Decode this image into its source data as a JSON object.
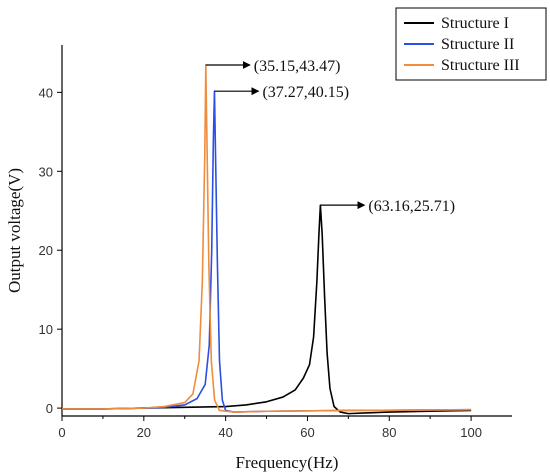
{
  "chart_data": {
    "type": "line",
    "title": "",
    "xlabel": "Frequency(Hz)",
    "ylabel": "Output voltage(V)",
    "xlim": [
      0,
      110
    ],
    "ylim": [
      -1,
      46
    ],
    "xticks": [
      0,
      20,
      40,
      60,
      80,
      100
    ],
    "yticks": [
      0,
      10,
      20,
      30,
      40
    ],
    "grid": false,
    "legend_position": "top-right",
    "series": [
      {
        "name": "Structure I",
        "color": "#000000",
        "points": [
          [
            0,
            -0.1
          ],
          [
            10,
            -0.1
          ],
          [
            20,
            0.0
          ],
          [
            30,
            0.1
          ],
          [
            40,
            0.2
          ],
          [
            45,
            0.4
          ],
          [
            50,
            0.8
          ],
          [
            54,
            1.4
          ],
          [
            57,
            2.3
          ],
          [
            59,
            3.8
          ],
          [
            60.5,
            5.5
          ],
          [
            61.5,
            9
          ],
          [
            62.3,
            16
          ],
          [
            62.8,
            22
          ],
          [
            63.16,
            25.71
          ],
          [
            63.6,
            22
          ],
          [
            64.2,
            14
          ],
          [
            64.8,
            7
          ],
          [
            65.5,
            2.5
          ],
          [
            66.5,
            0.2
          ],
          [
            68,
            -0.5
          ],
          [
            70,
            -0.7
          ],
          [
            75,
            -0.6
          ],
          [
            80,
            -0.5
          ],
          [
            90,
            -0.4
          ],
          [
            100,
            -0.3
          ]
        ]
      },
      {
        "name": "Structure II",
        "color": "#2b4fe0",
        "points": [
          [
            0,
            -0.1
          ],
          [
            10,
            -0.1
          ],
          [
            20,
            0.0
          ],
          [
            25,
            0.1
          ],
          [
            30,
            0.4
          ],
          [
            33,
            1.2
          ],
          [
            35,
            3.0
          ],
          [
            36,
            8
          ],
          [
            36.6,
            20
          ],
          [
            37.0,
            34
          ],
          [
            37.27,
            40.15
          ],
          [
            37.5,
            33
          ],
          [
            38.0,
            18
          ],
          [
            38.5,
            6
          ],
          [
            39.2,
            1.0
          ],
          [
            40,
            -0.3
          ],
          [
            42,
            -0.5
          ],
          [
            50,
            -0.4
          ],
          [
            70,
            -0.3
          ],
          [
            100,
            -0.2
          ]
        ]
      },
      {
        "name": "Structure III",
        "color": "#f08c3c",
        "points": [
          [
            0,
            -0.1
          ],
          [
            10,
            -0.1
          ],
          [
            20,
            0.0
          ],
          [
            25,
            0.2
          ],
          [
            30,
            0.7
          ],
          [
            32,
            1.8
          ],
          [
            33.5,
            6
          ],
          [
            34.3,
            16
          ],
          [
            34.9,
            32
          ],
          [
            35.15,
            43.47
          ],
          [
            35.4,
            35
          ],
          [
            35.9,
            18
          ],
          [
            36.5,
            6
          ],
          [
            37.3,
            1.0
          ],
          [
            38.5,
            -0.3
          ],
          [
            42,
            -0.5
          ],
          [
            50,
            -0.4
          ],
          [
            70,
            -0.3
          ],
          [
            100,
            -0.2
          ]
        ]
      }
    ],
    "annotations": [
      {
        "label": "(35.15,43.47)",
        "x": 35.15,
        "y": 43.47
      },
      {
        "label": "(37.27,40.15)",
        "x": 37.27,
        "y": 40.15
      },
      {
        "label": "(63.16,25.71)",
        "x": 63.16,
        "y": 25.71
      }
    ]
  }
}
